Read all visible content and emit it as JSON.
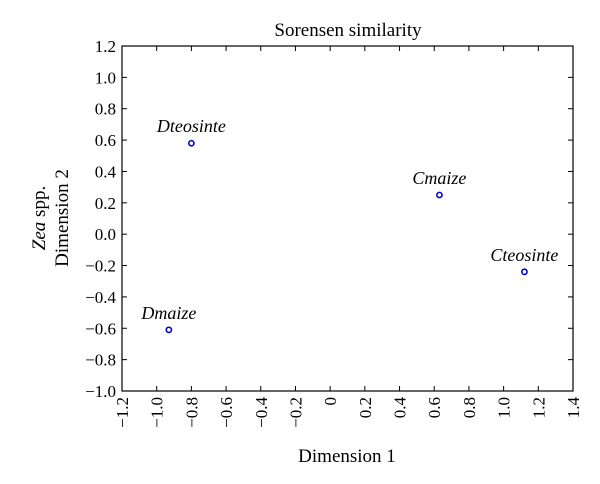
{
  "chart_data": {
    "type": "scatter",
    "title": "Sorensen similarity",
    "xlabel": "Dimension 1",
    "ylabel_prefix_italic": "Zea",
    "ylabel_prefix_rest": " spp.",
    "ylabel_line2": "Dimension 2",
    "xlim": [
      -1.2,
      1.4
    ],
    "ylim": [
      -1.0,
      1.2
    ],
    "x_ticks": [
      -1.2,
      -1.0,
      -0.8,
      -0.6,
      -0.4,
      -0.2,
      0.0,
      0.2,
      0.4,
      0.6,
      0.8,
      1.0,
      1.2,
      1.4
    ],
    "x_tick_labels": [
      "−1.2",
      "−1.0",
      "−0.8",
      "−0.6",
      "−0.4",
      "−0.2",
      "0",
      "0.2",
      "0.4",
      "0.6",
      "0.8",
      "1.0",
      "1.2",
      "1.4"
    ],
    "y_ticks": [
      -1.0,
      -0.8,
      -0.6,
      -0.4,
      -0.2,
      0.0,
      0.2,
      0.4,
      0.6,
      0.8,
      1.0,
      1.2
    ],
    "y_tick_labels": [
      "−1.0",
      "−0.8",
      "−0.6",
      "−0.4",
      "−0.2",
      "0.0",
      "0.2",
      "0.4",
      "0.6",
      "0.8",
      "1.0",
      "1.2"
    ],
    "grid": false,
    "marker_color": "#0000cc",
    "points": [
      {
        "label": "Dteosinte",
        "x": -0.8,
        "y": 0.58
      },
      {
        "label": "Cmaize",
        "x": 0.63,
        "y": 0.25
      },
      {
        "label": "Cteosinte",
        "x": 1.12,
        "y": -0.24
      },
      {
        "label": "Dmaize",
        "x": -0.93,
        "y": -0.61
      }
    ]
  }
}
